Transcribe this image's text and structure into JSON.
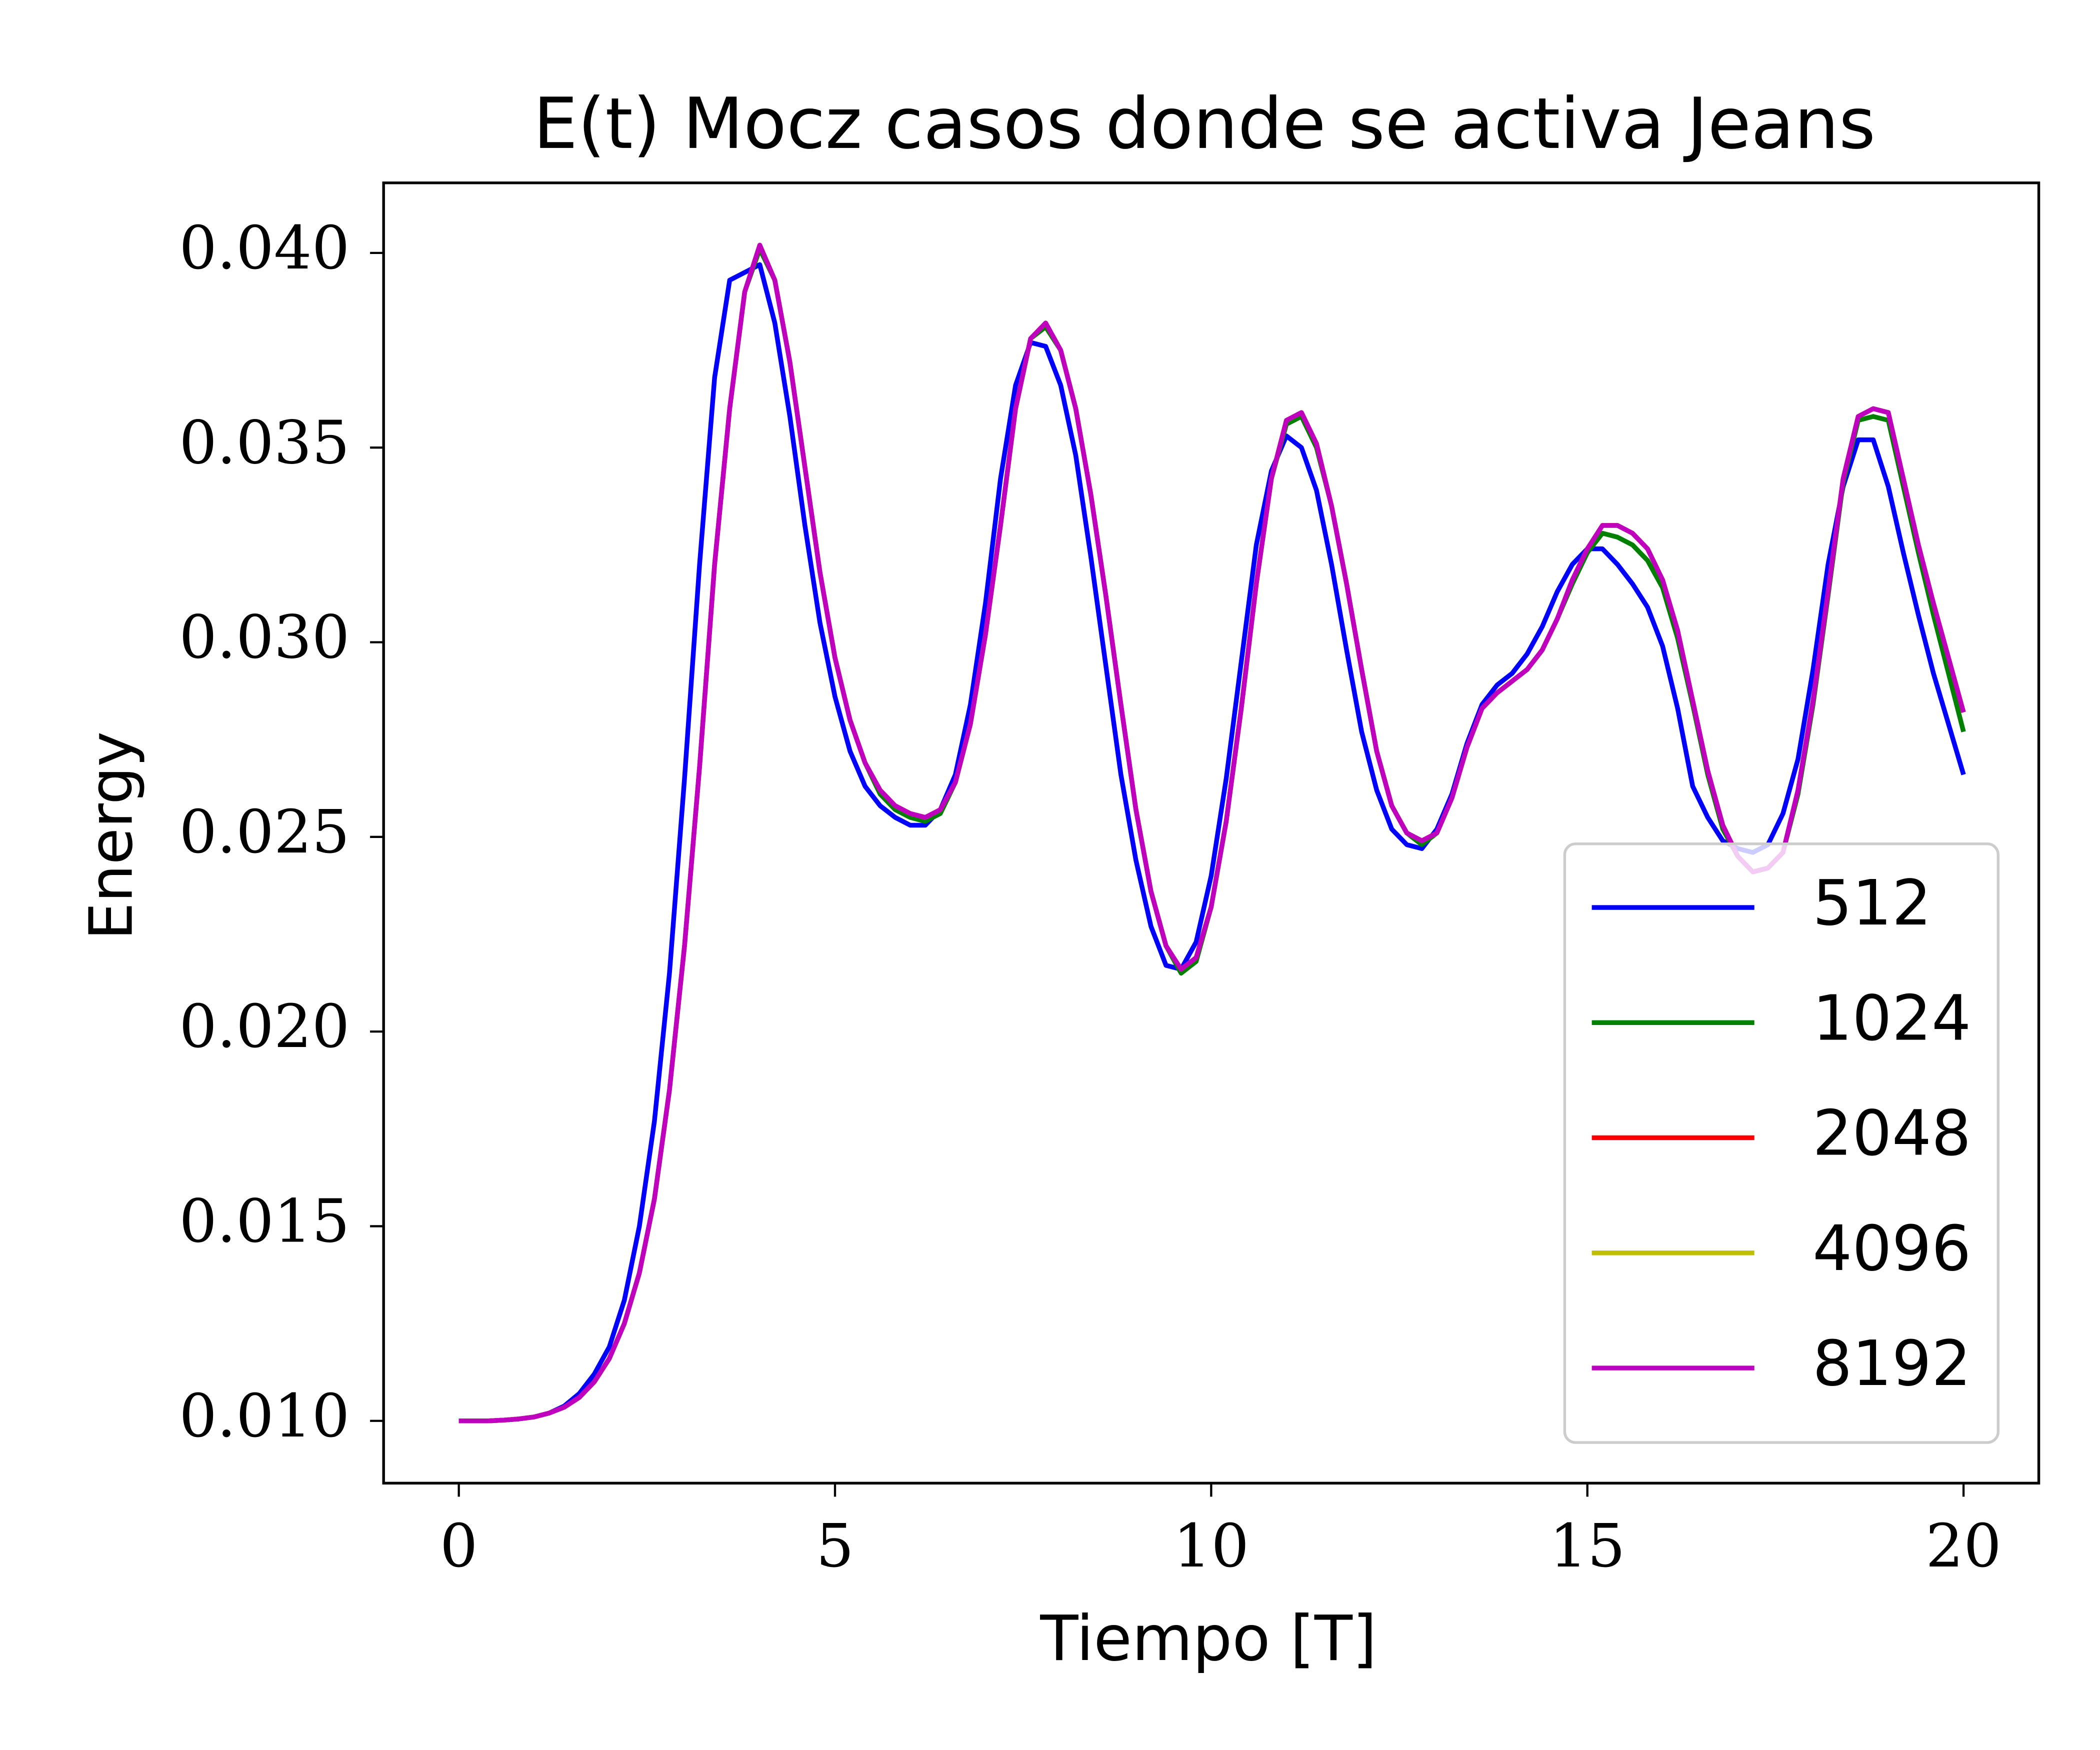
{
  "chart_data": {
    "type": "line",
    "title": "E(t) Mocz casos donde se activa Jeans",
    "xlabel": "Tiempo [T]",
    "ylabel": "Energy",
    "x": [
      0,
      0.2,
      0.4,
      0.6,
      0.8,
      1.0,
      1.2,
      1.4,
      1.6,
      1.8,
      2.0,
      2.2,
      2.4,
      2.6,
      2.8,
      3.0,
      3.2,
      3.4,
      3.6,
      3.8,
      4.0,
      4.2,
      4.4,
      4.6,
      4.8,
      5.0,
      5.2,
      5.4,
      5.6,
      5.8,
      6.0,
      6.2,
      6.4,
      6.6,
      6.8,
      7.0,
      7.2,
      7.4,
      7.6,
      7.8,
      8.0,
      8.2,
      8.4,
      8.6,
      8.8,
      9.0,
      9.2,
      9.4,
      9.6,
      9.8,
      10.0,
      10.2,
      10.4,
      10.6,
      10.8,
      11.0,
      11.2,
      11.4,
      11.6,
      11.8,
      12.0,
      12.2,
      12.4,
      12.6,
      12.8,
      13.0,
      13.2,
      13.4,
      13.6,
      13.8,
      14.0,
      14.2,
      14.4,
      14.6,
      14.8,
      15.0,
      15.2,
      15.4,
      15.6,
      15.8,
      16.0,
      16.2,
      16.4,
      16.6,
      16.8,
      17.0,
      17.2,
      17.4,
      17.6,
      17.8,
      18.0,
      18.2,
      18.4,
      18.6,
      18.8,
      19.0,
      19.2,
      19.4,
      19.6,
      19.8,
      20.0
    ],
    "series": [
      {
        "name": "512",
        "color": "#0000ff",
        "values": [
          0.01,
          0.01,
          0.01,
          0.01002,
          0.01005,
          0.0101,
          0.0102,
          0.01038,
          0.0107,
          0.0112,
          0.0119,
          0.0131,
          0.015,
          0.0177,
          0.0215,
          0.0265,
          0.032,
          0.0368,
          0.0393,
          0.0395,
          0.0397,
          0.0382,
          0.0358,
          0.033,
          0.0305,
          0.0286,
          0.0272,
          0.0263,
          0.0258,
          0.0255,
          0.0253,
          0.0253,
          0.0257,
          0.0266,
          0.0284,
          0.031,
          0.0342,
          0.0366,
          0.0377,
          0.0376,
          0.0366,
          0.0348,
          0.0322,
          0.0294,
          0.0266,
          0.0244,
          0.0227,
          0.0217,
          0.0216,
          0.0223,
          0.024,
          0.0265,
          0.0295,
          0.0325,
          0.0344,
          0.0353,
          0.035,
          0.0339,
          0.032,
          0.0298,
          0.0277,
          0.0262,
          0.0252,
          0.0248,
          0.0247,
          0.0252,
          0.0261,
          0.0274,
          0.0284,
          0.0289,
          0.0292,
          0.0297,
          0.0304,
          0.0313,
          0.032,
          0.0324,
          0.0324,
          0.032,
          0.0315,
          0.0309,
          0.0299,
          0.0283,
          0.0263,
          0.0255,
          0.0249,
          0.0247,
          0.0246,
          0.0248,
          0.0256,
          0.027,
          0.0293,
          0.032,
          0.034,
          0.0352,
          0.0352,
          0.034,
          0.0323,
          0.0307,
          0.0292,
          0.0279,
          0.0266
        ]
      },
      {
        "name": "1024",
        "color": "#008000",
        "values": [
          0.01,
          0.01,
          0.01,
          0.01002,
          0.01005,
          0.0101,
          0.0102,
          0.01035,
          0.0106,
          0.011,
          0.0116,
          0.0125,
          0.0138,
          0.0157,
          0.0185,
          0.0222,
          0.0268,
          0.032,
          0.036,
          0.039,
          0.0401,
          0.0393,
          0.0372,
          0.0345,
          0.0318,
          0.0296,
          0.028,
          0.0269,
          0.0261,
          0.0257,
          0.0255,
          0.0254,
          0.0256,
          0.0264,
          0.0279,
          0.0302,
          0.033,
          0.036,
          0.0378,
          0.0381,
          0.0375,
          0.036,
          0.0338,
          0.0312,
          0.0284,
          0.0257,
          0.0236,
          0.0222,
          0.0215,
          0.0218,
          0.0232,
          0.0254,
          0.0283,
          0.0315,
          0.0342,
          0.0356,
          0.0358,
          0.035,
          0.0335,
          0.0315,
          0.0293,
          0.0272,
          0.0258,
          0.0251,
          0.0248,
          0.0251,
          0.026,
          0.0273,
          0.0283,
          0.0287,
          0.029,
          0.0293,
          0.0298,
          0.0306,
          0.0315,
          0.0323,
          0.0328,
          0.0327,
          0.0325,
          0.0321,
          0.0314,
          0.0301,
          0.0284,
          0.0266,
          0.0252,
          0.0245,
          0.0241,
          0.0242,
          0.0246,
          0.0261,
          0.0284,
          0.0312,
          0.0341,
          0.0357,
          0.0358,
          0.0357,
          0.034,
          0.0323,
          0.0307,
          0.0292,
          0.0277
        ]
      },
      {
        "name": "2048",
        "color": "#ff0000",
        "values": [
          0.01,
          0.01,
          0.01,
          0.01002,
          0.01005,
          0.0101,
          0.0102,
          0.01035,
          0.0106,
          0.011,
          0.0116,
          0.0125,
          0.0138,
          0.0157,
          0.0185,
          0.0222,
          0.0268,
          0.032,
          0.036,
          0.039,
          0.0402,
          0.0393,
          0.0372,
          0.0345,
          0.0318,
          0.0296,
          0.028,
          0.0269,
          0.0262,
          0.0258,
          0.0256,
          0.0255,
          0.0257,
          0.0264,
          0.0279,
          0.0302,
          0.033,
          0.036,
          0.0378,
          0.0382,
          0.0375,
          0.036,
          0.0338,
          0.0312,
          0.0284,
          0.0257,
          0.0236,
          0.0222,
          0.0216,
          0.0219,
          0.0232,
          0.0254,
          0.0283,
          0.0315,
          0.0342,
          0.0357,
          0.0359,
          0.0351,
          0.0335,
          0.0315,
          0.0293,
          0.0272,
          0.0258,
          0.0251,
          0.0249,
          0.0251,
          0.026,
          0.0273,
          0.0283,
          0.0287,
          0.029,
          0.0293,
          0.0298,
          0.0306,
          0.0316,
          0.0324,
          0.033,
          0.033,
          0.0328,
          0.0324,
          0.0316,
          0.0303,
          0.0285,
          0.0267,
          0.0253,
          0.0245,
          0.0241,
          0.0242,
          0.0246,
          0.0262,
          0.0285,
          0.0313,
          0.0342,
          0.0358,
          0.036,
          0.0359,
          0.0342,
          0.0325,
          0.031,
          0.0296,
          0.0282
        ]
      },
      {
        "name": "4096",
        "color": "#bfbf00",
        "values": [
          0.01,
          0.01,
          0.01,
          0.01002,
          0.01005,
          0.0101,
          0.0102,
          0.01035,
          0.0106,
          0.011,
          0.0116,
          0.0125,
          0.0138,
          0.0157,
          0.0185,
          0.0222,
          0.0268,
          0.032,
          0.036,
          0.039,
          0.0402,
          0.0393,
          0.0372,
          0.0345,
          0.0318,
          0.0296,
          0.028,
          0.0269,
          0.0262,
          0.0258,
          0.0256,
          0.0255,
          0.0257,
          0.0264,
          0.0279,
          0.0302,
          0.033,
          0.036,
          0.0378,
          0.0382,
          0.0375,
          0.036,
          0.0338,
          0.0312,
          0.0284,
          0.0257,
          0.0236,
          0.0222,
          0.0216,
          0.0219,
          0.0232,
          0.0254,
          0.0283,
          0.0315,
          0.0342,
          0.0357,
          0.0359,
          0.0351,
          0.0335,
          0.0315,
          0.0293,
          0.0272,
          0.0258,
          0.0251,
          0.0249,
          0.0251,
          0.026,
          0.0273,
          0.0283,
          0.0287,
          0.029,
          0.0293,
          0.0298,
          0.0306,
          0.0316,
          0.0324,
          0.033,
          0.033,
          0.0328,
          0.0324,
          0.0316,
          0.0303,
          0.0285,
          0.0267,
          0.0253,
          0.0245,
          0.0241,
          0.0242,
          0.0246,
          0.0262,
          0.0285,
          0.0313,
          0.0342,
          0.0358,
          0.036,
          0.0359,
          0.0342,
          0.0325,
          0.031,
          0.0296,
          0.0282
        ]
      },
      {
        "name": "8192",
        "color": "#bf00bf",
        "values": [
          0.01,
          0.01,
          0.01,
          0.01002,
          0.01005,
          0.0101,
          0.0102,
          0.01035,
          0.0106,
          0.011,
          0.0116,
          0.0125,
          0.0138,
          0.0157,
          0.0185,
          0.0222,
          0.0268,
          0.032,
          0.036,
          0.039,
          0.0402,
          0.0393,
          0.0372,
          0.0345,
          0.0318,
          0.0296,
          0.028,
          0.0269,
          0.0262,
          0.0258,
          0.0256,
          0.0255,
          0.0257,
          0.0264,
          0.0279,
          0.0302,
          0.033,
          0.036,
          0.0378,
          0.0382,
          0.0375,
          0.036,
          0.0338,
          0.0312,
          0.0284,
          0.0257,
          0.0236,
          0.0222,
          0.0216,
          0.0219,
          0.0232,
          0.0254,
          0.0283,
          0.0315,
          0.0342,
          0.0357,
          0.0359,
          0.0351,
          0.0335,
          0.0315,
          0.0293,
          0.0272,
          0.0258,
          0.0251,
          0.0249,
          0.0251,
          0.026,
          0.0273,
          0.0283,
          0.0287,
          0.029,
          0.0293,
          0.0298,
          0.0306,
          0.0316,
          0.0324,
          0.033,
          0.033,
          0.0328,
          0.0324,
          0.0316,
          0.0303,
          0.0285,
          0.0267,
          0.0253,
          0.0245,
          0.0241,
          0.0242,
          0.0246,
          0.0262,
          0.0285,
          0.0313,
          0.0342,
          0.0358,
          0.036,
          0.0359,
          0.0342,
          0.0325,
          0.031,
          0.0296,
          0.0282
        ]
      }
    ],
    "xlim": [
      -1,
      21
    ],
    "ylim": [
      0.0084,
      0.0418
    ],
    "xticks": [
      0,
      5,
      10,
      15,
      20
    ],
    "yticks": [
      {
        "value": 0.01,
        "label": "0.010"
      },
      {
        "value": 0.015,
        "label": "0.015"
      },
      {
        "value": 0.02,
        "label": "0.020"
      },
      {
        "value": 0.025,
        "label": "0.025"
      },
      {
        "value": 0.03,
        "label": "0.030"
      },
      {
        "value": 0.035,
        "label": "0.035"
      },
      {
        "value": 0.04,
        "label": "0.040"
      }
    ],
    "grid": false,
    "legend": "lower right"
  }
}
